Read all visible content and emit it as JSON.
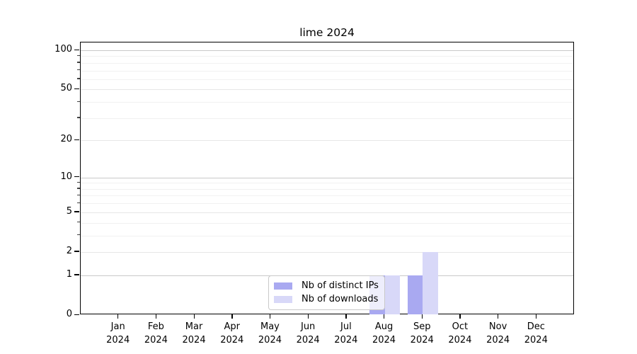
{
  "figure": {
    "title": "lime 2024"
  },
  "chart_data": {
    "type": "bar",
    "title": "lime 2024",
    "x": {
      "months": [
        "Jan",
        "Feb",
        "Mar",
        "Apr",
        "May",
        "Jun",
        "Jul",
        "Aug",
        "Sep",
        "Oct",
        "Nov",
        "Dec"
      ],
      "year": "2024"
    },
    "series": [
      {
        "name": "Nb of distinct IPs",
        "color": "#a9a9f1",
        "values": [
          0,
          0,
          0,
          0,
          0,
          0,
          0,
          1,
          1,
          0,
          0,
          0
        ]
      },
      {
        "name": "Nb of downloads",
        "color": "#d8d8f8",
        "values": [
          0,
          0,
          0,
          0,
          0,
          0,
          0,
          1,
          2,
          0,
          0,
          0
        ]
      }
    ],
    "y_axis": {
      "scale": "log1p",
      "major_ticks": [
        0,
        1,
        2,
        5,
        10,
        20,
        50,
        100
      ],
      "decade_ticks": [
        1,
        10,
        100
      ],
      "minor_ticks": [
        3,
        4,
        6,
        7,
        8,
        9,
        30,
        40,
        60,
        70,
        80,
        90
      ],
      "ylim": [
        0,
        103
      ]
    },
    "grid": {
      "decade_color": "#c9c9c9",
      "labeled_color": "#e7e7e7",
      "minor_color": "#f1f1f1"
    },
    "legend": {
      "position": "lower-center"
    }
  }
}
